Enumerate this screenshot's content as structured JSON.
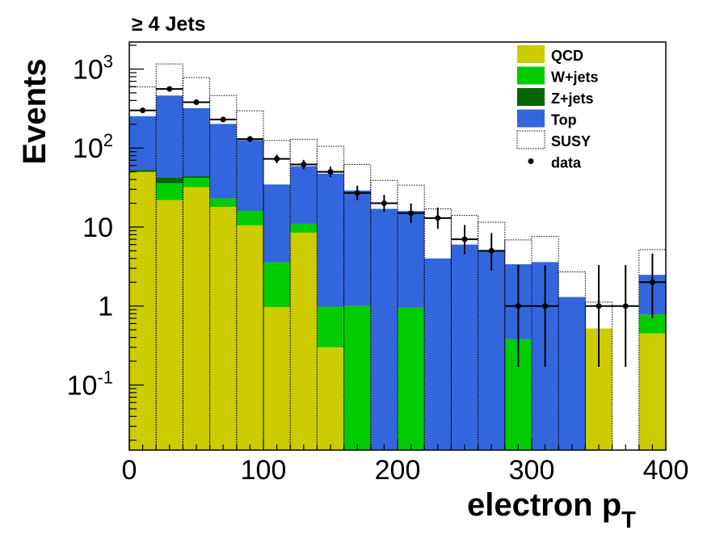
{
  "chart_data": {
    "type": "bar",
    "title": "≥ 4 Jets",
    "xlabel": "electron p",
    "xlabel_subscript": "T",
    "ylabel": "Events",
    "xlim": [
      0,
      400
    ],
    "ylim": [
      0.015,
      2200
    ],
    "y_scale": "log",
    "grid": false,
    "legend_position": "top-right",
    "stacked": true,
    "bin_edges": [
      0,
      20,
      40,
      60,
      80,
      100,
      120,
      140,
      160,
      180,
      200,
      220,
      240,
      260,
      280,
      300,
      320,
      340,
      360,
      380,
      400
    ],
    "x_ticks": [
      {
        "value": 0,
        "label": "0"
      },
      {
        "value": 100,
        "label": "100"
      },
      {
        "value": 200,
        "label": "200"
      },
      {
        "value": 300,
        "label": "300"
      },
      {
        "value": 400,
        "label": "400"
      }
    ],
    "y_ticks": [
      {
        "value": 0.1,
        "base": "10",
        "exp": "-1"
      },
      {
        "value": 1,
        "base": "1",
        "exp": ""
      },
      {
        "value": 10,
        "base": "10",
        "exp": ""
      },
      {
        "value": 100,
        "base": "10",
        "exp": "2"
      },
      {
        "value": 1000,
        "base": "10",
        "exp": "3"
      }
    ],
    "series": [
      {
        "name": "QCD",
        "color": "#cccc00",
        "values": [
          50,
          22,
          32,
          18,
          10.5,
          0.97,
          8.5,
          0.3,
          0,
          0,
          0,
          0,
          0,
          0,
          0,
          0,
          0,
          0.52,
          0,
          0.45
        ]
      },
      {
        "name": "W+jets",
        "color": "#00cc00",
        "values": [
          0,
          14,
          10,
          5,
          5.5,
          2.6,
          2.5,
          0.68,
          1.0,
          0,
          0.95,
          0,
          0,
          0,
          0.38,
          0,
          0,
          0,
          0,
          0.33
        ]
      },
      {
        "name": "Z+jets",
        "color": "#006600",
        "values": [
          3,
          6,
          2,
          0,
          0,
          0,
          0,
          0,
          0,
          0,
          0,
          0,
          0,
          0,
          0,
          0,
          0,
          0,
          0,
          0
        ]
      },
      {
        "name": "Top",
        "color": "#3366dd",
        "values": [
          200,
          420,
          276,
          179,
          110,
          31,
          48,
          46.5,
          28,
          17,
          15,
          4.0,
          6.0,
          5.0,
          3.0,
          3.6,
          1.3,
          0,
          0,
          1.7
        ]
      }
    ],
    "susy": {
      "name": "SUSY",
      "values": [
        340,
        700,
        460,
        260,
        170,
        90,
        70,
        58,
        33,
        22,
        18,
        13,
        8,
        6.5,
        3.5,
        4.0,
        1.4,
        0.6,
        0,
        2.7
      ]
    },
    "data_points": {
      "name": "data",
      "x": [
        10,
        30,
        50,
        70,
        90,
        110,
        130,
        150,
        170,
        190,
        210,
        230,
        250,
        270,
        290,
        310,
        350,
        370,
        390
      ],
      "y": [
        300,
        560,
        380,
        230,
        130,
        73,
        62,
        50,
        27,
        20,
        15,
        13,
        7,
        5,
        1,
        1,
        1,
        1,
        2
      ],
      "err_low": [
        17,
        23,
        19,
        15,
        11,
        8.5,
        7.9,
        7,
        5.2,
        4.5,
        3.8,
        3.5,
        2.5,
        2.2,
        0.83,
        0.83,
        0.83,
        0.83,
        1.3
      ],
      "err_high": [
        18,
        24,
        20,
        16,
        12,
        9.6,
        8.9,
        8,
        6.3,
        5.5,
        4.9,
        4.6,
        3.6,
        3.4,
        2.3,
        2.3,
        2.3,
        2.3,
        2.6
      ]
    }
  }
}
